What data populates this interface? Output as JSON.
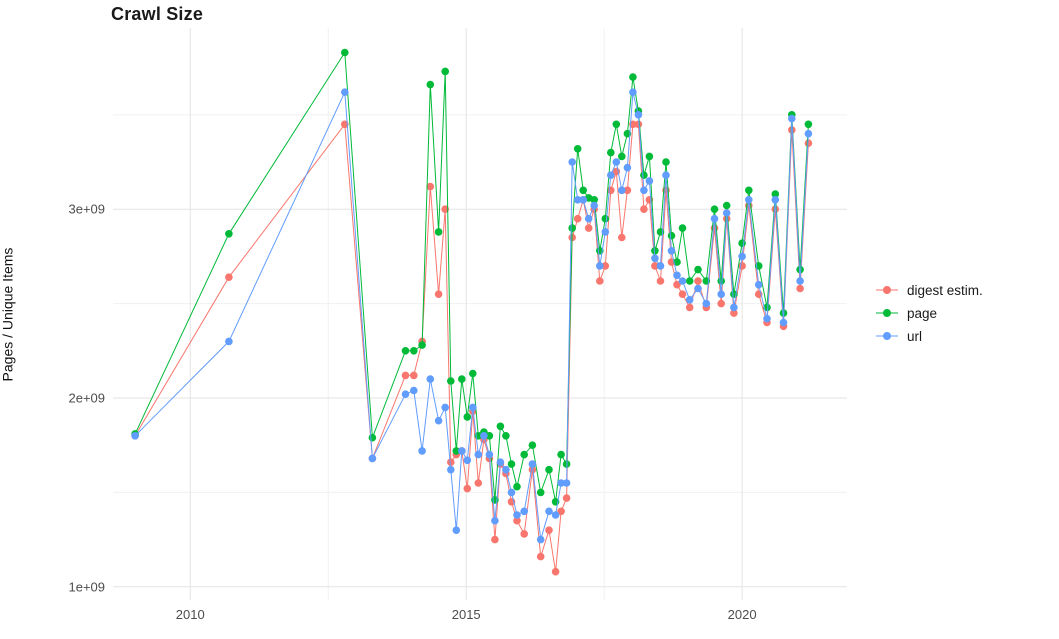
{
  "chart_data": {
    "type": "line",
    "title": "Crawl Size",
    "xlabel": "",
    "ylabel": "Pages / Unique Items",
    "values_unit": "billions (1e9) of pages / unique items",
    "x_unit": "year (decimal)",
    "xlim": [
      2008.6,
      2021.9
    ],
    "ylim": [
      0.93,
      3.96
    ],
    "grid": true,
    "legend_position": "right",
    "x_ticks": [
      {
        "value": 2010,
        "label": "2010"
      },
      {
        "value": 2015,
        "label": "2015"
      },
      {
        "value": 2020,
        "label": "2020"
      }
    ],
    "x_minor_ticks": [
      2012.5,
      2017.5
    ],
    "y_ticks": [
      {
        "value": 1,
        "label": "1e+09"
      },
      {
        "value": 2,
        "label": "2e+09"
      },
      {
        "value": 3,
        "label": "3e+09"
      }
    ],
    "y_minor_ticks": [
      1.5,
      2.5,
      3.5
    ],
    "x": [
      2009.0,
      2010.7,
      2012.8,
      2013.3,
      2013.9,
      2014.05,
      2014.2,
      2014.35,
      2014.5,
      2014.62,
      2014.72,
      2014.82,
      2014.92,
      2015.02,
      2015.12,
      2015.22,
      2015.32,
      2015.42,
      2015.52,
      2015.62,
      2015.72,
      2015.82,
      2015.92,
      2016.05,
      2016.2,
      2016.35,
      2016.5,
      2016.62,
      2016.72,
      2016.82,
      2016.92,
      2017.02,
      2017.12,
      2017.22,
      2017.32,
      2017.42,
      2017.52,
      2017.62,
      2017.72,
      2017.82,
      2017.92,
      2018.02,
      2018.12,
      2018.22,
      2018.32,
      2018.42,
      2018.52,
      2018.62,
      2018.72,
      2018.82,
      2018.92,
      2019.05,
      2019.2,
      2019.35,
      2019.5,
      2019.62,
      2019.72,
      2019.85,
      2020.0,
      2020.12,
      2020.3,
      2020.45,
      2020.6,
      2020.75,
      2020.9,
      2021.05,
      2021.2
    ],
    "series": [
      {
        "name": "digest estim.",
        "color": "#F8766D",
        "values": [
          1.8,
          2.64,
          3.45,
          1.68,
          2.12,
          2.12,
          2.3,
          3.12,
          2.55,
          3.0,
          1.66,
          1.7,
          1.72,
          1.52,
          1.93,
          1.55,
          1.78,
          1.68,
          1.25,
          1.65,
          1.6,
          1.45,
          1.35,
          1.28,
          1.62,
          1.16,
          1.3,
          1.08,
          1.4,
          1.47,
          2.85,
          2.95,
          3.05,
          2.9,
          3.0,
          2.62,
          2.7,
          3.1,
          3.2,
          2.85,
          3.1,
          3.45,
          3.45,
          3.0,
          3.05,
          2.7,
          2.62,
          3.1,
          2.72,
          2.6,
          2.55,
          2.48,
          2.62,
          2.48,
          2.9,
          2.5,
          2.95,
          2.45,
          2.7,
          3.02,
          2.55,
          2.4,
          3.0,
          2.38,
          3.42,
          2.58,
          3.35
        ]
      },
      {
        "name": "page",
        "color": "#00BA38",
        "values": [
          1.81,
          2.87,
          3.83,
          1.79,
          2.25,
          2.25,
          2.28,
          3.66,
          2.88,
          3.73,
          2.09,
          1.72,
          2.1,
          1.9,
          2.13,
          1.8,
          1.82,
          1.8,
          1.46,
          1.85,
          1.8,
          1.65,
          1.53,
          1.7,
          1.75,
          1.5,
          1.62,
          1.45,
          1.7,
          1.65,
          2.9,
          3.32,
          3.1,
          3.06,
          3.05,
          2.78,
          2.95,
          3.3,
          3.45,
          3.28,
          3.4,
          3.7,
          3.52,
          3.18,
          3.28,
          2.78,
          2.88,
          3.25,
          2.86,
          2.72,
          2.9,
          2.62,
          2.68,
          2.62,
          3.0,
          2.62,
          3.02,
          2.55,
          2.82,
          3.1,
          2.7,
          2.48,
          3.08,
          2.45,
          3.5,
          2.68,
          3.45
        ]
      },
      {
        "name": "url",
        "color": "#619CFF",
        "values": [
          1.8,
          2.3,
          3.62,
          1.68,
          2.02,
          2.04,
          1.72,
          2.1,
          1.88,
          1.95,
          1.62,
          1.3,
          1.72,
          1.67,
          1.95,
          1.7,
          1.8,
          1.7,
          1.35,
          1.66,
          1.62,
          1.5,
          1.38,
          1.4,
          1.65,
          1.25,
          1.4,
          1.38,
          1.55,
          1.55,
          3.25,
          3.05,
          3.05,
          2.95,
          3.02,
          2.7,
          2.88,
          3.18,
          3.25,
          3.1,
          3.22,
          3.62,
          3.5,
          3.1,
          3.15,
          2.74,
          2.7,
          3.18,
          2.78,
          2.65,
          2.62,
          2.52,
          2.58,
          2.5,
          2.95,
          2.55,
          2.98,
          2.48,
          2.75,
          3.05,
          2.6,
          2.42,
          3.05,
          2.4,
          3.48,
          2.62,
          3.4
        ]
      }
    ],
    "style": {
      "grid_major_color": "#e3e3e3",
      "grid_minor_color": "#f0f0f0",
      "background": "#ffffff",
      "tick_text_color": "#4d4d4d"
    }
  }
}
